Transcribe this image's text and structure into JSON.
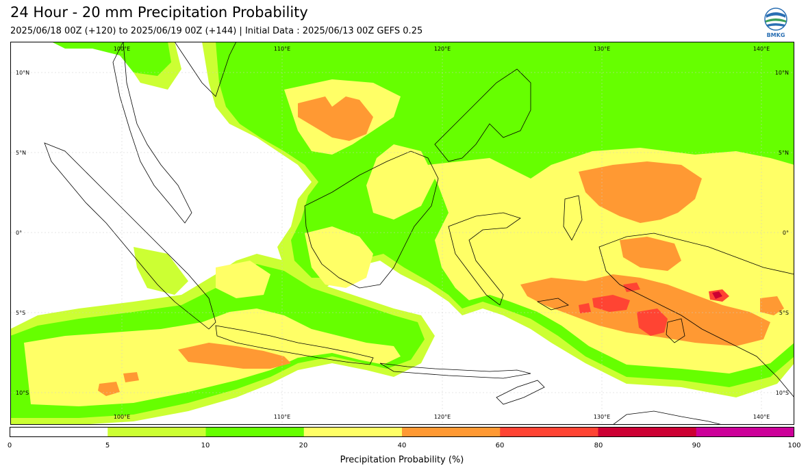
{
  "header": {
    "title": "24 Hour - 20 mm Precipitation Probability",
    "subtitle": "2025/06/18 00Z (+120) to 2025/06/19 00Z (+144) | Initial Data : 2025/06/13 00Z GEFS 0.25",
    "logo_text": "BMKG"
  },
  "map": {
    "lon_labels_top": [
      "100°E",
      "110°E",
      "120°E",
      "130°E",
      "140°E"
    ],
    "lon_labels_bottom": [
      "100°E",
      "110°E",
      "120°E",
      "130°E",
      "140°E"
    ],
    "lat_labels_left": [
      "10°N",
      "5°N",
      "0°",
      "5°S",
      "10°S"
    ],
    "lat_labels_right": [
      "10°N",
      "5°N",
      "0°",
      "5°S",
      "10°S"
    ],
    "lon_range": [
      94,
      143
    ],
    "lat_range": [
      -12,
      11.5
    ],
    "grid": true,
    "colors": {
      "bin_5_10": "#ccff33",
      "bin_10_20": "#66ff00",
      "bin_20_40": "#ffff66",
      "bin_40_60": "#ff9933",
      "bin_60_80": "#ff4433",
      "bin_80_90": "#cc0033",
      "bin_90_100": "#cc0099",
      "coast": "#000000"
    }
  },
  "colorbar": {
    "ticks": [
      "0",
      "5",
      "10",
      "20",
      "40",
      "60",
      "80",
      "90",
      "100"
    ],
    "bins": [
      {
        "from": "0",
        "to": "5",
        "color": "#ffffff"
      },
      {
        "from": "5",
        "to": "10",
        "color": "#ccff33"
      },
      {
        "from": "10",
        "to": "20",
        "color": "#66ff00"
      },
      {
        "from": "20",
        "to": "40",
        "color": "#ffff66"
      },
      {
        "from": "40",
        "to": "60",
        "color": "#ff9933"
      },
      {
        "from": "60",
        "to": "80",
        "color": "#ff4433"
      },
      {
        "from": "80",
        "to": "90",
        "color": "#cc0033"
      },
      {
        "from": "90",
        "to": "100",
        "color": "#cc0099"
      }
    ],
    "label": "Precipitation Probability (%)"
  }
}
